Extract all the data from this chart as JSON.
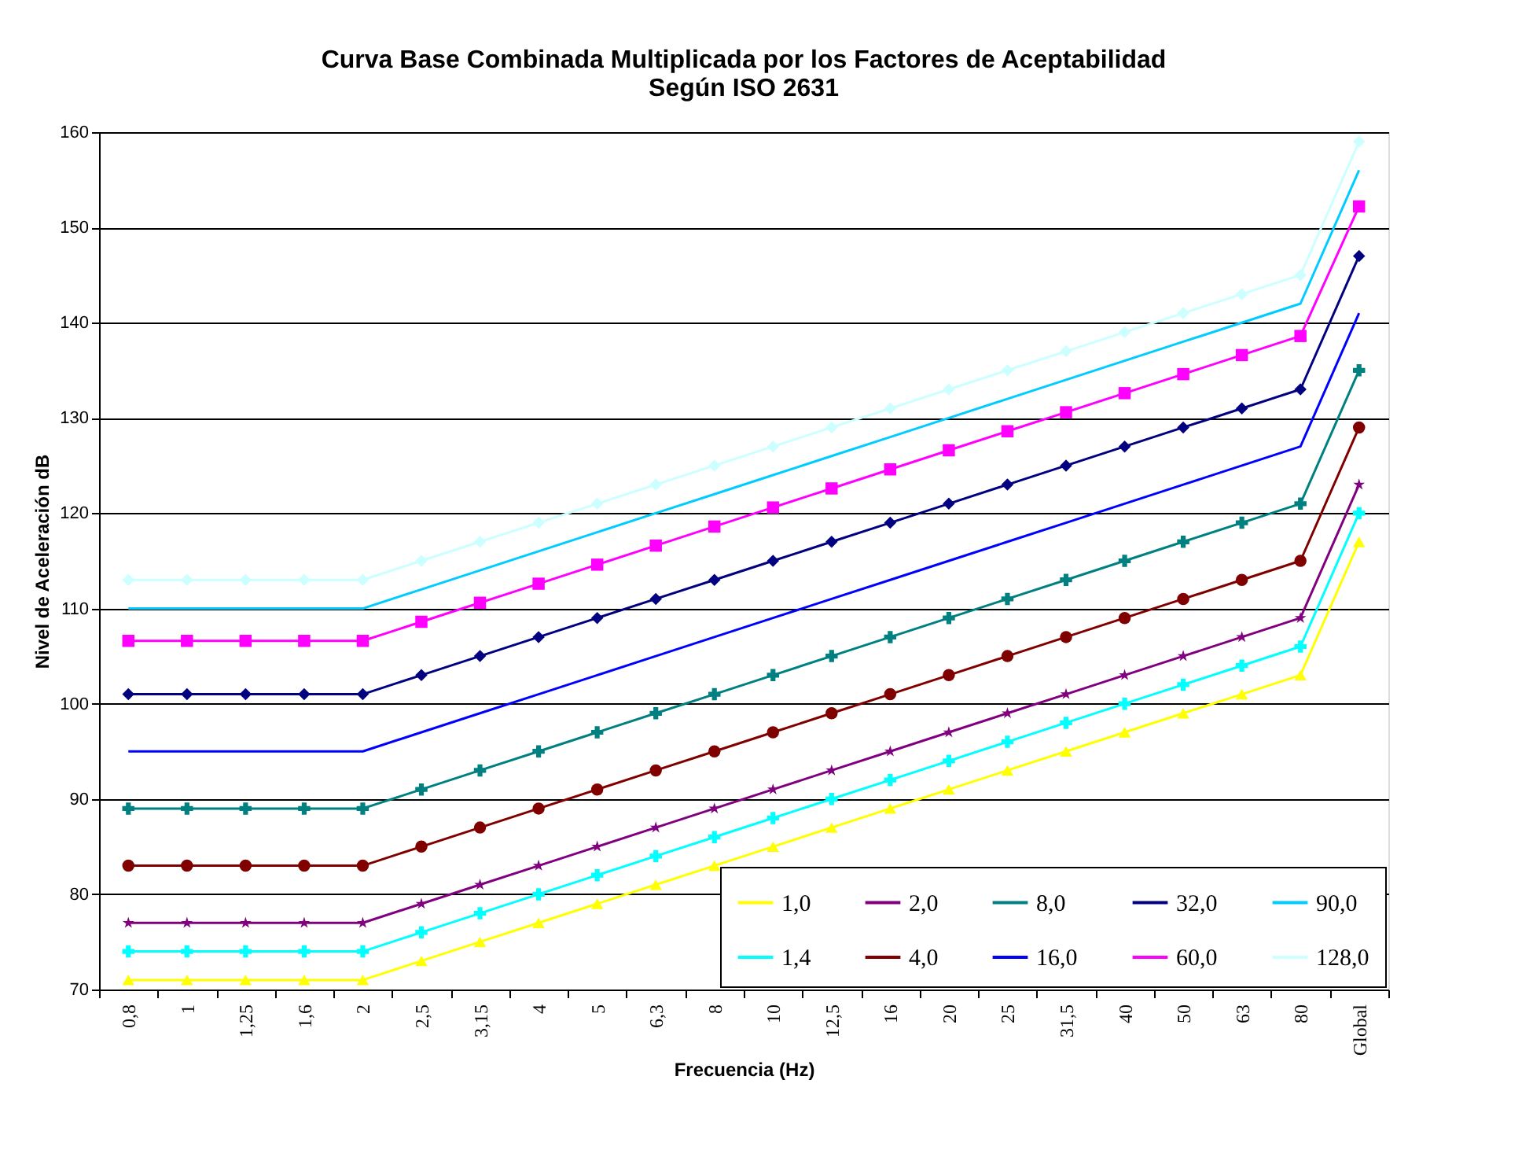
{
  "chart_data": {
    "type": "line",
    "title": "Curva Base Combinada Multiplicada por los Factores de Aceptabilidad\nSegún ISO 2631",
    "xlabel": "Frecuencia (Hz)",
    "ylabel": "Nivel de Aceleración dB",
    "categories": [
      "0,8",
      "1",
      "1,25",
      "1,6",
      "2",
      "2,5",
      "3,15",
      "4",
      "5",
      "6,3",
      "8",
      "10",
      "12,5",
      "16",
      "20",
      "25",
      "31,5",
      "40",
      "50",
      "63",
      "80",
      "Global"
    ],
    "ylim": [
      70,
      160
    ],
    "yticks": [
      70,
      80,
      90,
      100,
      110,
      120,
      130,
      140,
      150,
      160
    ],
    "grid": "y",
    "legend": "bottom right",
    "series": [
      {
        "name": "1,0",
        "color": "#ffff00",
        "marker": "triangle",
        "values": [
          71,
          71,
          71,
          71,
          71,
          73,
          75,
          77,
          79,
          81,
          83,
          85,
          87,
          89,
          91,
          93,
          95,
          97,
          99,
          101,
          103,
          117
        ]
      },
      {
        "name": "1,4",
        "color": "#00ffff",
        "marker": "cross",
        "values": [
          74,
          74,
          74,
          74,
          74,
          76,
          78,
          80,
          82,
          84,
          86,
          88,
          90,
          92,
          94,
          96,
          98,
          100,
          102,
          104,
          106,
          120
        ]
      },
      {
        "name": "2,0",
        "color": "#800080",
        "marker": "star",
        "values": [
          77,
          77,
          77,
          77,
          77,
          79,
          81,
          83,
          85,
          87,
          89,
          91,
          93,
          95,
          97,
          99,
          101,
          103,
          105,
          107,
          109,
          123
        ]
      },
      {
        "name": "4,0",
        "color": "#800000",
        "marker": "circle",
        "values": [
          83,
          83,
          83,
          83,
          83,
          85,
          87,
          89,
          91,
          93,
          95,
          97,
          99,
          101,
          103,
          105,
          107,
          109,
          111,
          113,
          115,
          129
        ]
      },
      {
        "name": "8,0",
        "color": "#008080",
        "marker": "cross",
        "values": [
          89,
          89,
          89,
          89,
          89,
          91,
          93,
          95,
          97,
          99,
          101,
          103,
          105,
          107,
          109,
          111,
          113,
          115,
          117,
          119,
          121,
          135
        ]
      },
      {
        "name": "16,0",
        "color": "#0000ff",
        "marker": "none",
        "values": [
          95,
          95,
          95,
          95,
          95,
          97,
          99,
          101,
          103,
          105,
          107,
          109,
          111,
          113,
          115,
          117,
          119,
          121,
          123,
          125,
          127,
          141
        ]
      },
      {
        "name": "32,0",
        "color": "#000080",
        "marker": "diamond",
        "values": [
          101,
          101,
          101,
          101,
          101,
          103,
          105,
          107,
          109,
          111,
          113,
          115,
          117,
          119,
          121,
          123,
          125,
          127,
          129,
          131,
          133,
          147
        ]
      },
      {
        "name": "60,0",
        "color": "#ff00ff",
        "marker": "square",
        "values": [
          106.6,
          106.6,
          106.6,
          106.6,
          106.6,
          108.6,
          110.6,
          112.6,
          114.6,
          116.6,
          118.6,
          120.6,
          122.6,
          124.6,
          126.6,
          128.6,
          130.6,
          132.6,
          134.6,
          136.6,
          138.6,
          152.2
        ]
      },
      {
        "name": "90,0",
        "color": "#00ccff",
        "marker": "none",
        "values": [
          110,
          110,
          110,
          110,
          110,
          112,
          114,
          116,
          118,
          120,
          122,
          124,
          126,
          128,
          130,
          132,
          134,
          136,
          138,
          140,
          142,
          156
        ]
      },
      {
        "name": "128,0",
        "color": "#ccffff",
        "marker": "diamond",
        "values": [
          113,
          113,
          113,
          113,
          113,
          115,
          117,
          119,
          121,
          123,
          125,
          127,
          129,
          131,
          133,
          135,
          137,
          139,
          141,
          143,
          145,
          159
        ]
      }
    ]
  }
}
